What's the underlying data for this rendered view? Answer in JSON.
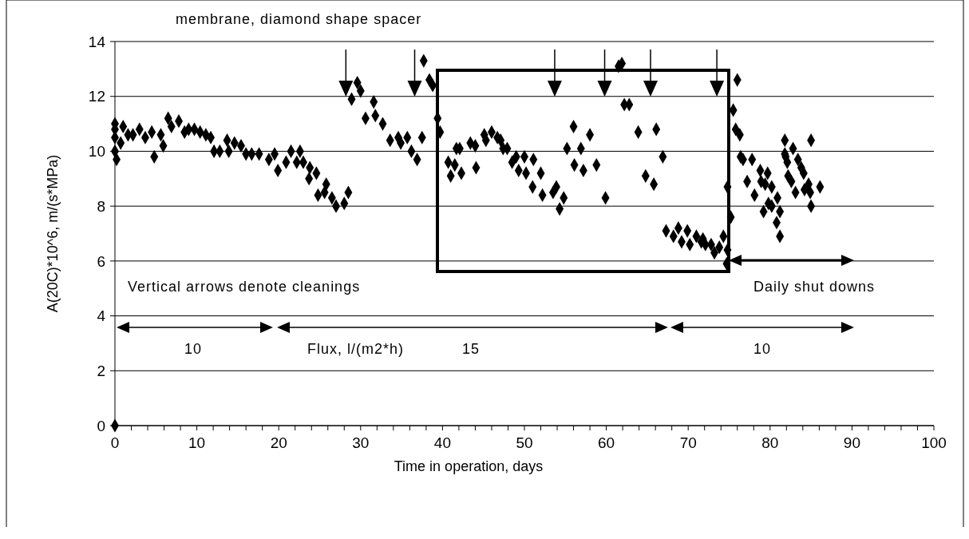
{
  "chart_data": {
    "type": "scatter",
    "title": "membrane, diamond shape spacer",
    "xlabel": "Time in operation, days",
    "ylabel": "A(20C)*10^6, m/(s*MPa)",
    "color": "#000000",
    "marker": "diamond",
    "grid": "y",
    "xlim": [
      0,
      100
    ],
    "ylim": [
      0,
      14
    ],
    "xticks": [
      0,
      {
        "value": 2,
        "label": null
      },
      {
        "value": 4,
        "label": null
      },
      {
        "value": 6,
        "label": null
      },
      {
        "value": 8,
        "label": null
      },
      10,
      {
        "value": 12,
        "label": null
      },
      {
        "value": 14,
        "label": null
      },
      {
        "value": 16,
        "label": null
      },
      {
        "value": 18,
        "label": null
      },
      20,
      {
        "value": 22,
        "label": null
      },
      {
        "value": 24,
        "label": null
      },
      {
        "value": 26,
        "label": null
      },
      {
        "value": 28,
        "label": null
      },
      30,
      {
        "value": 32,
        "label": null
      },
      {
        "value": 34,
        "label": null
      },
      {
        "value": 36,
        "label": null
      },
      {
        "value": 38,
        "label": null
      },
      40,
      {
        "value": 42,
        "label": null
      },
      {
        "value": 44,
        "label": null
      },
      {
        "value": 46,
        "label": null
      },
      {
        "value": 48,
        "label": null
      },
      50,
      {
        "value": 52,
        "label": null
      },
      {
        "value": 54,
        "label": null
      },
      {
        "value": 56,
        "label": null
      },
      {
        "value": 58,
        "label": null
      },
      60,
      {
        "value": 62,
        "label": null
      },
      {
        "value": 64,
        "label": null
      },
      {
        "value": 66,
        "label": null
      },
      {
        "value": 68,
        "label": null
      },
      70,
      {
        "value": 72,
        "label": null
      },
      {
        "value": 74,
        "label": null
      },
      {
        "value": 76,
        "label": null
      },
      {
        "value": 78,
        "label": null
      },
      80,
      {
        "value": 82,
        "label": null
      },
      {
        "value": 84,
        "label": null
      },
      {
        "value": 86,
        "label": null
      },
      {
        "value": 88,
        "label": null
      },
      90,
      {
        "value": 92,
        "label": null
      },
      {
        "value": 94,
        "label": null
      },
      {
        "value": 96,
        "label": null
      },
      {
        "value": 98,
        "label": null
      },
      100
    ],
    "yticks": [
      0,
      2,
      4,
      6,
      8,
      10,
      12,
      14
    ],
    "x": [
      0,
      0,
      0,
      0,
      0,
      0.2,
      0.7,
      1.0,
      1.6,
      2.2,
      3.0,
      3.7,
      4.5,
      4.8,
      5.6,
      5.9,
      6.5,
      6.9,
      7.8,
      8.5,
      9.0,
      9.7,
      10.4,
      11.1,
      11.7,
      12.1,
      12.8,
      13.7,
      13.9,
      14.6,
      15.4,
      16.0,
      16.7,
      17.6,
      18.8,
      19.5,
      19.9,
      20.9,
      21.5,
      22.2,
      22.6,
      23.0,
      23.7,
      23.8,
      24.6,
      24.8,
      25.8,
      25.6,
      26.5,
      27.0,
      28.0,
      28.5,
      28.9,
      29.6,
      30.0,
      30.6,
      31.6,
      31.8,
      32.7,
      33.6,
      34.6,
      34.9,
      35.7,
      36.2,
      36.9,
      37.5,
      37.7,
      38.4,
      38.8,
      39.4,
      39.7,
      40.7,
      41.0,
      41.5,
      41.7,
      42.1,
      42.3,
      43.4,
      44.0,
      44.1,
      45.1,
      45.3,
      46.0,
      46.7,
      47.1,
      47.4,
      47.9,
      48.5,
      49.0,
      49.3,
      50.0,
      50.2,
      51.0,
      51.1,
      52.0,
      52.2,
      53.5,
      53.9,
      54.3,
      54.8,
      55.2,
      56.0,
      56.1,
      56.9,
      57.2,
      58.0,
      58.8,
      59.9,
      61.5,
      61.9,
      62.2,
      62.8,
      63.9,
      64.8,
      65.8,
      66.1,
      66.9,
      67.3,
      68.2,
      68.8,
      69.2,
      69.9,
      70.2,
      71.0,
      71.6,
      71.8,
      72.1,
      72.8,
      73.2,
      73.8,
      74.3,
      74.7,
      74.8,
      74.8,
      75.2,
      75.5,
      75.8,
      76.0,
      76.3,
      76.4,
      76.7,
      77.2,
      77.8,
      78.1,
      78.8,
      78.9,
      79.2,
      79.4,
      79.7,
      79.8,
      80.2,
      80.2,
      80.8,
      80.9,
      81.2,
      81.2,
      81.8,
      81.8,
      81.9,
      82.1,
      82.2,
      82.6,
      82.8,
      83.1,
      83.4,
      83.8,
      84.1,
      84.2,
      84.7,
      84.9,
      85.0,
      85.0,
      86.1
    ],
    "values": [
      0,
      11.0,
      10.8,
      10.5,
      10.0,
      9.7,
      10.3,
      10.9,
      10.6,
      10.6,
      10.8,
      10.5,
      10.7,
      9.8,
      10.6,
      10.2,
      11.2,
      10.9,
      11.1,
      10.7,
      10.8,
      10.8,
      10.7,
      10.6,
      10.5,
      10.0,
      10.0,
      10.4,
      10.0,
      10.3,
      10.2,
      9.9,
      9.9,
      9.9,
      9.7,
      9.9,
      9.3,
      9.6,
      10.0,
      9.6,
      10.0,
      9.6,
      9.0,
      9.4,
      9.2,
      8.4,
      8.8,
      8.5,
      8.3,
      8.0,
      8.1,
      8.5,
      11.9,
      12.5,
      12.2,
      11.2,
      11.8,
      11.3,
      11.0,
      10.4,
      10.5,
      10.3,
      10.5,
      10.0,
      9.7,
      10.5,
      13.3,
      12.6,
      12.4,
      11.2,
      10.7,
      9.6,
      9.1,
      9.5,
      10.1,
      10.1,
      9.2,
      10.3,
      10.2,
      9.4,
      10.6,
      10.4,
      10.7,
      10.5,
      10.4,
      10.1,
      10.1,
      9.6,
      9.8,
      9.3,
      9.8,
      9.2,
      8.7,
      9.7,
      9.2,
      8.4,
      8.5,
      8.7,
      7.9,
      8.3,
      10.1,
      10.9,
      9.5,
      10.1,
      9.3,
      10.6,
      9.5,
      8.3,
      13.1,
      13.2,
      11.7,
      11.7,
      10.7,
      9.1,
      8.8,
      10.8,
      9.8,
      7.1,
      6.9,
      7.2,
      6.7,
      7.1,
      6.6,
      6.9,
      6.7,
      6.8,
      6.6,
      6.6,
      6.3,
      6.5,
      6.9,
      5.9,
      6.4,
      8.7,
      7.6,
      11.5,
      10.8,
      12.6,
      10.6,
      9.8,
      9.7,
      8.9,
      9.7,
      8.4,
      9.3,
      8.9,
      7.8,
      8.8,
      9.2,
      8.1,
      8.7,
      8.0,
      7.4,
      8.3,
      7.8,
      6.9,
      10.4,
      9.9,
      9.8,
      9.6,
      9.1,
      8.9,
      10.1,
      8.5,
      9.7,
      9.4,
      9.2,
      8.6,
      8.8,
      8.5,
      10.4,
      8.0,
      8.7
    ],
    "ref_lines": [
      {
        "axis": "x",
        "value": 28.2
      },
      {
        "axis": "x",
        "value": 36.6
      },
      {
        "axis": "x",
        "value": 53.7
      },
      {
        "axis": "x",
        "value": 59.8
      },
      {
        "axis": "x",
        "value": 65.4
      },
      {
        "axis": "x",
        "value": 73.5
      }
    ],
    "annotations": [
      "Vertical arrows denote cleanings",
      "Flux, l/(m2*h)",
      "10",
      "15",
      "10",
      "Daily shut downs"
    ]
  }
}
